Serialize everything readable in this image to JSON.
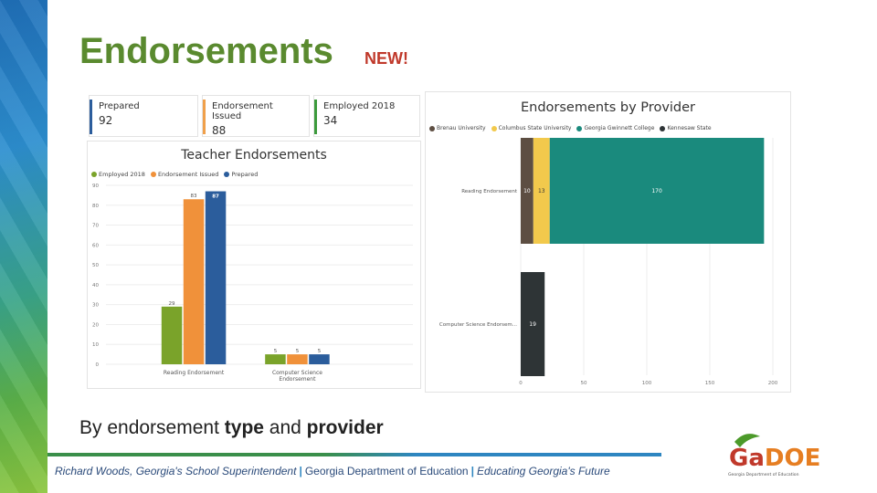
{
  "slide": {
    "title": "Endorsements",
    "title_badge": "NEW!",
    "subtitle_pre": "By endorsement ",
    "subtitle_b1": "type",
    "subtitle_mid": " and ",
    "subtitle_b2": "provider"
  },
  "kpis": [
    {
      "label": "Prepared",
      "value": "92",
      "color": "#2b5d9c"
    },
    {
      "label": "Endorsement Issued",
      "value": "88",
      "color": "#f0a04b"
    },
    {
      "label": "Employed 2018",
      "value": "34",
      "color": "#3c9a3c"
    }
  ],
  "teacher_chart": {
    "title": "Teacher Endorsements",
    "legend": [
      {
        "label": "Employed 2018",
        "color": "#7aa32a"
      },
      {
        "label": "Endorsement Issued",
        "color": "#f0913a"
      },
      {
        "label": "Prepared",
        "color": "#2b5d9c"
      }
    ]
  },
  "provider_chart": {
    "title": "Endorsements by Provider",
    "legend": [
      {
        "label": "Brenau University",
        "color": "#5d4e42"
      },
      {
        "label": "Columbus State University",
        "color": "#f2c94c"
      },
      {
        "label": "Georgia Gwinnett College",
        "color": "#1a8a7d"
      },
      {
        "label": "Kennesaw State",
        "color": "#2e3436"
      }
    ]
  },
  "chart_data": [
    {
      "type": "bar",
      "title": "Teacher Endorsements",
      "categories": [
        "Reading Endorsement",
        "Computer Science Endorsement"
      ],
      "series": [
        {
          "name": "Employed 2018",
          "values": [
            29,
            5
          ],
          "color": "#7aa32a"
        },
        {
          "name": "Endorsement Issued",
          "values": [
            83,
            5
          ],
          "color": "#f0913a"
        },
        {
          "name": "Prepared",
          "values": [
            87,
            5
          ],
          "color": "#2b5d9c"
        }
      ],
      "ylim": [
        0,
        90
      ],
      "yticks": [
        0,
        10,
        20,
        30,
        40,
        50,
        60,
        70,
        80,
        90
      ],
      "legend_position": "top-left",
      "grid": true
    },
    {
      "type": "bar",
      "orientation": "horizontal",
      "stacked": true,
      "title": "Endorsements by Provider",
      "categories": [
        "Reading Endorsement",
        "Computer Science Endorsem..."
      ],
      "series": [
        {
          "name": "Brenau University",
          "values": [
            10,
            null
          ],
          "color": "#5d4e42"
        },
        {
          "name": "Columbus State University",
          "values": [
            13,
            null
          ],
          "color": "#f2c94c"
        },
        {
          "name": "Georgia Gwinnett College",
          "values": [
            170,
            null
          ],
          "color": "#1a8a7d"
        },
        {
          "name": "Kennesaw State",
          "values": [
            null,
            19
          ],
          "color": "#2e3436"
        }
      ],
      "xlim": [
        0,
        200
      ],
      "xticks": [
        0,
        50,
        100,
        150,
        200
      ],
      "legend_position": "top-left",
      "grid": true
    }
  ],
  "footer": {
    "name": "Richard Woods, Georgia's School Superintendent",
    "dept": "Georgia Department of Education",
    "motto": "Educating Georgia's Future",
    "sep": "|"
  },
  "logo": {
    "text": "GaDOE",
    "caption": "Georgia Department of Education",
    "color_primary": "#c0392b",
    "color_secondary": "#e67e22",
    "color_leaf": "#4c9a2a"
  }
}
